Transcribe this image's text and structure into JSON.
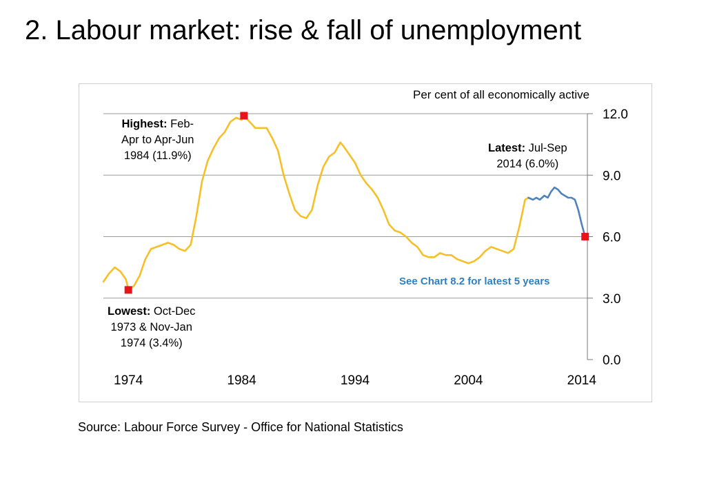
{
  "title": "2. Labour market: rise & fall of unemployment",
  "source": "Source: Labour Force Survey - Office for National Statistics",
  "chart_data": {
    "type": "line",
    "ylabel": "Per cent of all economically active",
    "ylim": [
      0,
      12
    ],
    "xlim": [
      1971.8,
      2014.5
    ],
    "y_ticks": [
      "12.0",
      "9.0",
      "6.0",
      "3.0",
      "0.0"
    ],
    "x_ticks": [
      "1974",
      "1984",
      "1994",
      "2004",
      "2014"
    ],
    "grid": true,
    "annotations": {
      "highest": {
        "bold": "Highest:",
        "line1": " Feb-",
        "line2": "Apr to Apr-Jun",
        "line3": "1984 (11.9%)"
      },
      "lowest": {
        "bold": "Lowest:",
        "line1": " Oct-Dec",
        "line2": "1973 & Nov-Jan",
        "line3": "1974 (3.4%)"
      },
      "latest": {
        "bold": "Latest:",
        "line1": " Jul-Sep",
        "line2": "2014 (6.0%)"
      },
      "note": "See Chart 8.2 for latest 5 years"
    },
    "markers": [
      {
        "x": 1974.0,
        "y": 3.4
      },
      {
        "x": 1984.2,
        "y": 11.9
      },
      {
        "x": 2014.3,
        "y": 6.0
      }
    ],
    "series": [
      {
        "color": "#f7bf27",
        "x": [
          1971.8,
          1972.3,
          1972.8,
          1973.3,
          1973.8,
          1974.0,
          1974.5,
          1975.0,
          1975.5,
          1976.0,
          1976.5,
          1977.0,
          1977.5,
          1978.0,
          1978.5,
          1979.0,
          1979.5,
          1980.0,
          1980.5,
          1981.0,
          1981.5,
          1982.0,
          1982.5,
          1983.0,
          1983.5,
          1984.0,
          1984.2,
          1984.7,
          1985.2,
          1985.7,
          1986.2,
          1986.7,
          1987.2,
          1987.7,
          1988.2,
          1988.7,
          1989.2,
          1989.7,
          1990.2,
          1990.7,
          1991.2,
          1991.7,
          1992.2,
          1992.7,
          1993.0,
          1993.5,
          1994.0,
          1994.5,
          1995.0,
          1995.5,
          1996.0,
          1996.5,
          1997.0,
          1997.5,
          1998.0,
          1998.5,
          1999.0,
          1999.5,
          2000.0,
          2000.5,
          2001.0,
          2001.5,
          2002.0,
          2002.5,
          2003.0,
          2003.5,
          2004.0,
          2004.5,
          2005.0,
          2005.5,
          2006.0,
          2006.5,
          2007.0,
          2007.5,
          2008.0,
          2008.5,
          2009.0,
          2009.3
        ],
        "y": [
          3.8,
          4.2,
          4.5,
          4.3,
          3.9,
          3.4,
          3.6,
          4.1,
          4.9,
          5.4,
          5.5,
          5.6,
          5.7,
          5.6,
          5.4,
          5.3,
          5.6,
          7.0,
          8.7,
          9.7,
          10.3,
          10.8,
          11.1,
          11.6,
          11.8,
          11.7,
          11.9,
          11.6,
          11.3,
          11.3,
          11.3,
          10.8,
          10.2,
          9.0,
          8.1,
          7.3,
          7.0,
          6.9,
          7.3,
          8.5,
          9.4,
          9.9,
          10.1,
          10.6,
          10.4,
          10.0,
          9.6,
          9.0,
          8.6,
          8.3,
          7.9,
          7.3,
          6.6,
          6.3,
          6.2,
          6.0,
          5.7,
          5.5,
          5.1,
          5.0,
          5.0,
          5.2,
          5.1,
          5.1,
          4.9,
          4.8,
          4.7,
          4.8,
          5.0,
          5.3,
          5.5,
          5.4,
          5.3,
          5.2,
          5.4,
          6.5,
          7.8,
          7.9
        ]
      },
      {
        "color": "#4f81bd",
        "x": [
          2009.3,
          2009.7,
          2010.0,
          2010.3,
          2010.7,
          2011.0,
          2011.3,
          2011.6,
          2011.9,
          2012.2,
          2012.5,
          2012.8,
          2013.1,
          2013.4,
          2013.7,
          2014.0,
          2014.3
        ],
        "y": [
          7.9,
          7.8,
          7.9,
          7.8,
          8.0,
          7.9,
          8.2,
          8.4,
          8.3,
          8.1,
          8.0,
          7.9,
          7.9,
          7.8,
          7.3,
          6.6,
          6.0
        ]
      }
    ]
  }
}
